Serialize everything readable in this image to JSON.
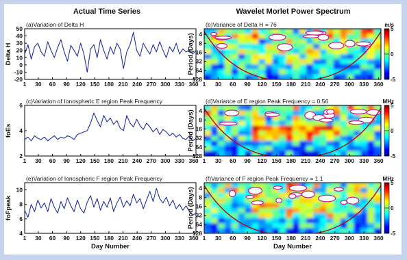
{
  "figure": {
    "left_title": "Actual Time Series",
    "right_title": "Wavelet Morlet Power Spectrum"
  },
  "chart_data": [
    {
      "type": "line",
      "title": "(a)Variation of Delta H",
      "ylabel": "Delta H",
      "xlabel": "",
      "xlim": [
        1,
        365
      ],
      "ylim": [
        -20,
        50
      ],
      "x_ticks": [
        1,
        30,
        60,
        90,
        120,
        150,
        180,
        210,
        240,
        270,
        300,
        330,
        360
      ],
      "y_ticks": [
        -20,
        -10,
        0,
        10,
        20,
        30,
        40,
        50
      ],
      "grid": false,
      "series": [
        {
          "color": "#1f2d9e",
          "x": [
            1,
            8,
            15,
            22,
            29,
            36,
            43,
            50,
            57,
            64,
            71,
            78,
            85,
            92,
            99,
            106,
            113,
            120,
            127,
            134,
            141,
            148,
            155,
            162,
            169,
            176,
            183,
            190,
            197,
            204,
            211,
            218,
            225,
            232,
            239,
            246,
            253,
            260,
            267,
            274,
            281,
            288,
            295,
            302,
            309,
            316,
            323,
            330,
            337,
            344,
            351,
            358,
            365
          ],
          "y": [
            15,
            28,
            8,
            25,
            30,
            18,
            12,
            32,
            20,
            10,
            24,
            35,
            18,
            5,
            27,
            20,
            12,
            30,
            15,
            -10,
            22,
            28,
            10,
            35,
            20,
            8,
            25,
            15,
            30,
            22,
            -5,
            18,
            28,
            45,
            20,
            12,
            30,
            22,
            15,
            28,
            18,
            32,
            20,
            10,
            25,
            18,
            30,
            15,
            22,
            18,
            20,
            15,
            20
          ]
        }
      ]
    },
    {
      "type": "line",
      "title": "(c)Variation of Ionospheric E region Peak Frequency",
      "ylabel": "foEs",
      "xlabel": "",
      "xlim": [
        1,
        365
      ],
      "ylim": [
        2,
        6
      ],
      "x_ticks": [
        1,
        30,
        60,
        90,
        120,
        150,
        180,
        210,
        240,
        270,
        300,
        330,
        360
      ],
      "y_ticks": [
        2,
        4,
        6
      ],
      "grid": false,
      "series": [
        {
          "color": "#1f2d9e",
          "x": [
            1,
            8,
            15,
            22,
            29,
            36,
            43,
            50,
            57,
            64,
            71,
            78,
            85,
            92,
            99,
            106,
            113,
            120,
            127,
            134,
            141,
            148,
            155,
            162,
            169,
            176,
            183,
            190,
            197,
            204,
            211,
            218,
            225,
            232,
            239,
            246,
            253,
            260,
            267,
            274,
            281,
            288,
            295,
            302,
            309,
            316,
            323,
            330,
            337,
            344,
            351,
            358,
            365
          ],
          "y": [
            3.3,
            3.5,
            3.2,
            3.6,
            3.4,
            3.3,
            3.5,
            3.2,
            3.4,
            3.6,
            3.3,
            3.5,
            3.4,
            3.6,
            3.5,
            3.3,
            3.7,
            3.8,
            3.9,
            4.0,
            4.6,
            5.4,
            4.8,
            4.3,
            5.2,
            4.7,
            5.0,
            4.5,
            4.8,
            4.2,
            4.0,
            5.2,
            4.6,
            4.3,
            4.9,
            4.4,
            4.1,
            4.6,
            4.3,
            3.9,
            4.2,
            3.7,
            4.1,
            3.9,
            3.6,
            3.8,
            3.5,
            3.7,
            3.4,
            3.3,
            3.6,
            3.2,
            3.4
          ]
        }
      ]
    },
    {
      "type": "line",
      "title": "(e)Variation of Ionospheric F region Peak Frequency",
      "ylabel": "foFpeak",
      "xlabel": "Day Number",
      "xlim": [
        1,
        365
      ],
      "ylim": [
        4,
        11
      ],
      "x_ticks": [
        1,
        30,
        60,
        90,
        120,
        150,
        180,
        210,
        240,
        270,
        300,
        330,
        360
      ],
      "y_ticks": [
        4,
        6,
        8,
        10
      ],
      "grid": false,
      "series": [
        {
          "color": "#1f2d9e",
          "x": [
            1,
            8,
            15,
            22,
            29,
            36,
            43,
            50,
            57,
            64,
            71,
            78,
            85,
            92,
            99,
            106,
            113,
            120,
            127,
            134,
            141,
            148,
            155,
            162,
            169,
            176,
            183,
            190,
            197,
            204,
            211,
            218,
            225,
            232,
            239,
            246,
            253,
            260,
            267,
            274,
            281,
            288,
            295,
            302,
            309,
            316,
            323,
            330,
            337,
            344,
            351,
            358,
            365
          ],
          "y": [
            7.2,
            6.2,
            8.0,
            7.0,
            8.6,
            7.5,
            8.2,
            7.0,
            8.8,
            7.6,
            6.8,
            8.4,
            7.4,
            8.9,
            7.8,
            7.0,
            8.6,
            7.4,
            6.8,
            8.3,
            9.2,
            7.6,
            8.8,
            7.2,
            8.4,
            7.6,
            8.9,
            7.0,
            8.2,
            9.0,
            7.6,
            8.5,
            7.8,
            9.4,
            8.2,
            8.8,
            7.4,
            8.6,
            9.8,
            8.4,
            10.2,
            8.8,
            8.2,
            9.0,
            7.8,
            8.6,
            7.4,
            8.0,
            7.2,
            7.8,
            7.0,
            6.5,
            6.8
          ]
        }
      ]
    },
    {
      "type": "heatmap",
      "title": "(b)Variance of Delta H =   76",
      "ylabel": "Period (Days)",
      "xlabel": "",
      "colorbar_unit": "m/s",
      "colorbar_ticks": [
        5,
        0,
        -5
      ],
      "xlim": [
        1,
        365
      ],
      "x_ticks": [
        1,
        30,
        60,
        90,
        120,
        150,
        180,
        210,
        240,
        270,
        300,
        330,
        360
      ],
      "y_ticks": [
        4,
        8,
        16,
        32,
        64,
        128
      ],
      "y_scale": "log2",
      "colormap": "jet"
    },
    {
      "type": "heatmap",
      "title": "(d)Variance of E region Peak Frequency =  0.56",
      "ylabel": "Period (Days)",
      "xlabel": "",
      "colorbar_unit": "MHz",
      "colorbar_ticks": [
        5,
        0,
        -5
      ],
      "xlim": [
        1,
        365
      ],
      "x_ticks": [
        1,
        30,
        60,
        90,
        120,
        150,
        180,
        210,
        240,
        270,
        300,
        330,
        360
      ],
      "y_ticks": [
        4,
        8,
        16,
        32,
        64,
        128
      ],
      "y_scale": "log2",
      "colormap": "jet"
    },
    {
      "type": "heatmap",
      "title": "(f)Variance of F region Peak Frequency =   1.1",
      "ylabel": "Period (Days)",
      "xlabel": "Day Number",
      "colorbar_unit": "MHz",
      "colorbar_ticks": [
        5,
        0,
        -5
      ],
      "xlim": [
        1,
        365
      ],
      "x_ticks": [
        1,
        30,
        60,
        90,
        120,
        150,
        180,
        210,
        240,
        270,
        300,
        330,
        360
      ],
      "y_ticks": [
        4,
        8,
        16,
        32,
        64,
        128
      ],
      "y_scale": "log2",
      "colormap": "jet"
    }
  ]
}
